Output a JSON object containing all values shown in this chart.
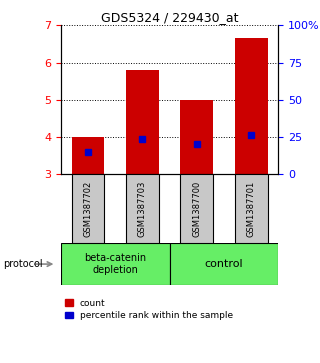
{
  "title": "GDS5324 / 229430_at",
  "samples": [
    "GSM1387702",
    "GSM1387703",
    "GSM1387700",
    "GSM1387701"
  ],
  "bar_bottoms": [
    3.0,
    3.0,
    3.0,
    3.0
  ],
  "bar_tops": [
    4.0,
    5.8,
    5.0,
    6.65
  ],
  "blue_markers": [
    3.6,
    3.95,
    3.8,
    4.05
  ],
  "ylim_left": [
    3,
    7
  ],
  "ylim_right": [
    0,
    100
  ],
  "yticks_left": [
    3,
    4,
    5,
    6,
    7
  ],
  "yticks_right": [
    0,
    25,
    50,
    75,
    100
  ],
  "ytick_labels_right": [
    "0",
    "25",
    "50",
    "75",
    "100%"
  ],
  "bar_color": "#cc0000",
  "marker_color": "#0000cc",
  "group1_label": "beta-catenin\ndepletion",
  "group2_label": "control",
  "group_bg_color": "#66ee66",
  "sample_bg_color": "#c8c8c8",
  "legend_count_label": "count",
  "legend_pct_label": "percentile rank within the sample",
  "protocol_label": "protocol",
  "fig_bg": "#ffffff",
  "bar_width": 0.6,
  "xlim": [
    -0.5,
    3.5
  ]
}
